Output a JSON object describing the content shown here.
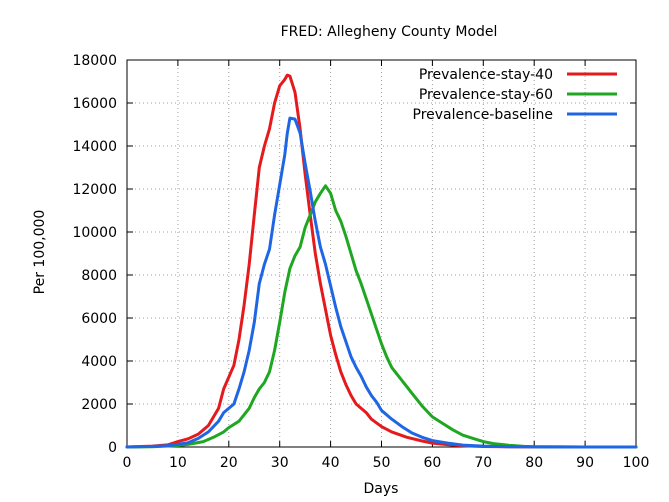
{
  "chart_data": {
    "type": "line",
    "title": "FRED: Allegheny County Model",
    "xlabel": "Days",
    "ylabel": "Per 100,000",
    "xlim": [
      0,
      100
    ],
    "ylim": [
      0,
      18000
    ],
    "x_ticks": [
      0,
      10,
      20,
      30,
      40,
      50,
      60,
      70,
      80,
      90,
      100
    ],
    "y_ticks": [
      0,
      2000,
      4000,
      6000,
      8000,
      10000,
      12000,
      14000,
      16000,
      18000
    ],
    "grid": true,
    "legend_position": "top-right",
    "series": [
      {
        "name": "Prevalence-stay-40",
        "color": "#e41a1c",
        "points": [
          [
            0,
            0
          ],
          [
            5,
            40
          ],
          [
            8,
            100
          ],
          [
            10,
            250
          ],
          [
            12,
            380
          ],
          [
            14,
            600
          ],
          [
            16,
            1000
          ],
          [
            18,
            1800
          ],
          [
            19,
            2700
          ],
          [
            21,
            3800
          ],
          [
            22,
            5000
          ],
          [
            23,
            6600
          ],
          [
            24,
            8500
          ],
          [
            25,
            10800
          ],
          [
            26,
            13000
          ],
          [
            27,
            14000
          ],
          [
            28,
            14800
          ],
          [
            29,
            16000
          ],
          [
            30,
            16800
          ],
          [
            31,
            17100
          ],
          [
            31.5,
            17300
          ],
          [
            32,
            17250
          ],
          [
            33,
            16500
          ],
          [
            34,
            14800
          ],
          [
            35,
            12700
          ],
          [
            36,
            10800
          ],
          [
            37,
            9000
          ],
          [
            38,
            7600
          ],
          [
            39,
            6400
          ],
          [
            40,
            5200
          ],
          [
            41,
            4300
          ],
          [
            42,
            3500
          ],
          [
            43,
            2900
          ],
          [
            44,
            2400
          ],
          [
            45,
            2000
          ],
          [
            47,
            1600
          ],
          [
            48,
            1300
          ],
          [
            50,
            950
          ],
          [
            52,
            700
          ],
          [
            55,
            450
          ],
          [
            58,
            280
          ],
          [
            60,
            180
          ],
          [
            63,
            110
          ],
          [
            66,
            60
          ],
          [
            70,
            25
          ],
          [
            75,
            10
          ],
          [
            80,
            5
          ],
          [
            90,
            0
          ],
          [
            100,
            0
          ]
        ]
      },
      {
        "name": "Prevalence-stay-60",
        "color": "#1fa722",
        "points": [
          [
            0,
            0
          ],
          [
            5,
            15
          ],
          [
            10,
            70
          ],
          [
            12,
            120
          ],
          [
            15,
            250
          ],
          [
            17,
            450
          ],
          [
            19,
            700
          ],
          [
            20,
            900
          ],
          [
            22,
            1200
          ],
          [
            24,
            1800
          ],
          [
            25,
            2300
          ],
          [
            26,
            2700
          ],
          [
            27,
            3000
          ],
          [
            28,
            3500
          ],
          [
            29,
            4500
          ],
          [
            30,
            5800
          ],
          [
            31,
            7200
          ],
          [
            32,
            8300
          ],
          [
            33,
            8900
          ],
          [
            34,
            9300
          ],
          [
            35,
            10200
          ],
          [
            36,
            10800
          ],
          [
            37,
            11400
          ],
          [
            38,
            11800
          ],
          [
            39,
            12150
          ],
          [
            40,
            11800
          ],
          [
            41,
            11000
          ],
          [
            42,
            10500
          ],
          [
            43,
            9800
          ],
          [
            44,
            9000
          ],
          [
            45,
            8200
          ],
          [
            46,
            7600
          ],
          [
            47,
            6900
          ],
          [
            48,
            6200
          ],
          [
            49,
            5500
          ],
          [
            50,
            4800
          ],
          [
            51,
            4200
          ],
          [
            52,
            3700
          ],
          [
            54,
            3100
          ],
          [
            56,
            2500
          ],
          [
            58,
            1900
          ],
          [
            60,
            1400
          ],
          [
            62,
            1100
          ],
          [
            64,
            800
          ],
          [
            66,
            550
          ],
          [
            68,
            400
          ],
          [
            70,
            250
          ],
          [
            72,
            160
          ],
          [
            75,
            80
          ],
          [
            78,
            30
          ],
          [
            80,
            15
          ],
          [
            90,
            0
          ],
          [
            100,
            0
          ]
        ]
      },
      {
        "name": "Prevalence-baseline",
        "color": "#1f66e5",
        "points": [
          [
            0,
            0
          ],
          [
            5,
            30
          ],
          [
            8,
            60
          ],
          [
            10,
            120
          ],
          [
            12,
            200
          ],
          [
            14,
            400
          ],
          [
            16,
            700
          ],
          [
            18,
            1200
          ],
          [
            19,
            1600
          ],
          [
            21,
            2000
          ],
          [
            22,
            2700
          ],
          [
            23,
            3500
          ],
          [
            24,
            4500
          ],
          [
            25,
            5800
          ],
          [
            26,
            7600
          ],
          [
            27,
            8500
          ],
          [
            28,
            9200
          ],
          [
            29,
            10800
          ],
          [
            30,
            12200
          ],
          [
            31,
            13600
          ],
          [
            31.5,
            14600
          ],
          [
            32,
            15300
          ],
          [
            33,
            15250
          ],
          [
            34,
            14600
          ],
          [
            35,
            13200
          ],
          [
            36,
            11900
          ],
          [
            37,
            10500
          ],
          [
            38,
            9300
          ],
          [
            39,
            8500
          ],
          [
            40,
            7500
          ],
          [
            41,
            6500
          ],
          [
            42,
            5600
          ],
          [
            43,
            4900
          ],
          [
            44,
            4200
          ],
          [
            45,
            3700
          ],
          [
            46,
            3300
          ],
          [
            47,
            2800
          ],
          [
            48,
            2400
          ],
          [
            49,
            2100
          ],
          [
            50,
            1700
          ],
          [
            52,
            1300
          ],
          [
            54,
            950
          ],
          [
            56,
            650
          ],
          [
            58,
            450
          ],
          [
            60,
            300
          ],
          [
            63,
            180
          ],
          [
            66,
            90
          ],
          [
            70,
            40
          ],
          [
            75,
            15
          ],
          [
            80,
            5
          ],
          [
            90,
            0
          ],
          [
            100,
            0
          ]
        ]
      }
    ]
  }
}
